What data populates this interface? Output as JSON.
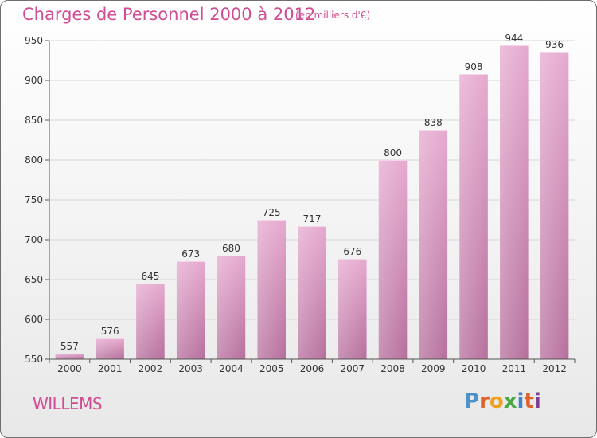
{
  "title": "Charges de Personnel 2000 à 2012",
  "subtitle": "(en milliers d'€)",
  "location": "WILLEMS",
  "logo": {
    "text": "Proxiti"
  },
  "colors": {
    "bar": "#cf8fb7",
    "title": "#d04c93",
    "grid": "#d6d6d6"
  },
  "chart_data": {
    "type": "bar",
    "categories": [
      "2000",
      "2001",
      "2002",
      "2003",
      "2004",
      "2005",
      "2006",
      "2007",
      "2008",
      "2009",
      "2010",
      "2011",
      "2012"
    ],
    "values": [
      557,
      576,
      645,
      673,
      680,
      725,
      717,
      676,
      800,
      838,
      908,
      944,
      936
    ],
    "ylim": [
      550,
      950
    ],
    "yticks": [
      550,
      600,
      650,
      700,
      750,
      800,
      850,
      900,
      950
    ],
    "title": "Charges de Personnel 2000 à 2012",
    "xlabel": "",
    "ylabel": "",
    "grid": true
  }
}
